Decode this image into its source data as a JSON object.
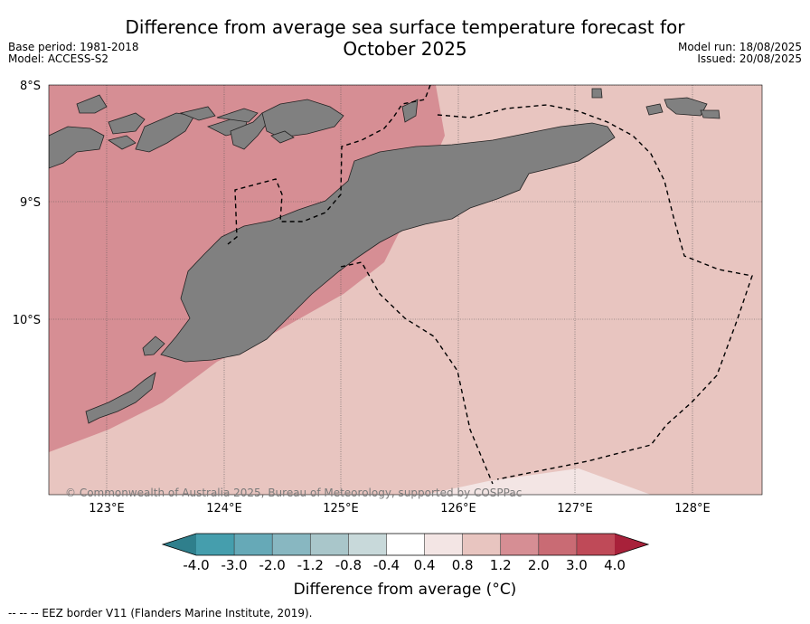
{
  "title": {
    "line1": "Difference from average sea surface temperature forecast for",
    "line2": "October 2025"
  },
  "meta_left": {
    "base_period": "Base period: 1981-2018",
    "model": "Model: ACCESS-S2"
  },
  "meta_right": {
    "model_run": "Model run: 18/08/2025",
    "issued": "Issued: 20/08/2025"
  },
  "map": {
    "lat_labels": [
      "8°S",
      "9°S",
      "10°S"
    ],
    "lon_labels": [
      "123°E",
      "124°E",
      "125°E",
      "126°E",
      "127°E",
      "128°E"
    ],
    "lon_range": [
      122.5,
      128.6
    ],
    "lat_range": [
      -11.5,
      -8.0
    ],
    "land_color": "#808080",
    "copyright": "© Commonwealth of Australia 2025, Bureau of Meteorology, supported by COSPPac"
  },
  "colorbar": {
    "ticks": [
      "-4.0",
      "-3.0",
      "-2.0",
      "-1.2",
      "-0.8",
      "-0.4",
      "0.4",
      "0.8",
      "1.2",
      "2.0",
      "3.0",
      "4.0"
    ],
    "colors": [
      "#2f7f8c",
      "#459ead",
      "#66a9b7",
      "#88b7c1",
      "#a9c6ca",
      "#c8d9da",
      "#ffffff",
      "#f3e5e4",
      "#e8c5c0",
      "#d68e94",
      "#c96b74",
      "#bf4a58",
      "#a8213a"
    ],
    "label": "Difference from average (",
    "unit": "°C)"
  },
  "legend_note": "--  --  -- EEZ border V11 (Flanders Marine Institute, 2019)."
}
